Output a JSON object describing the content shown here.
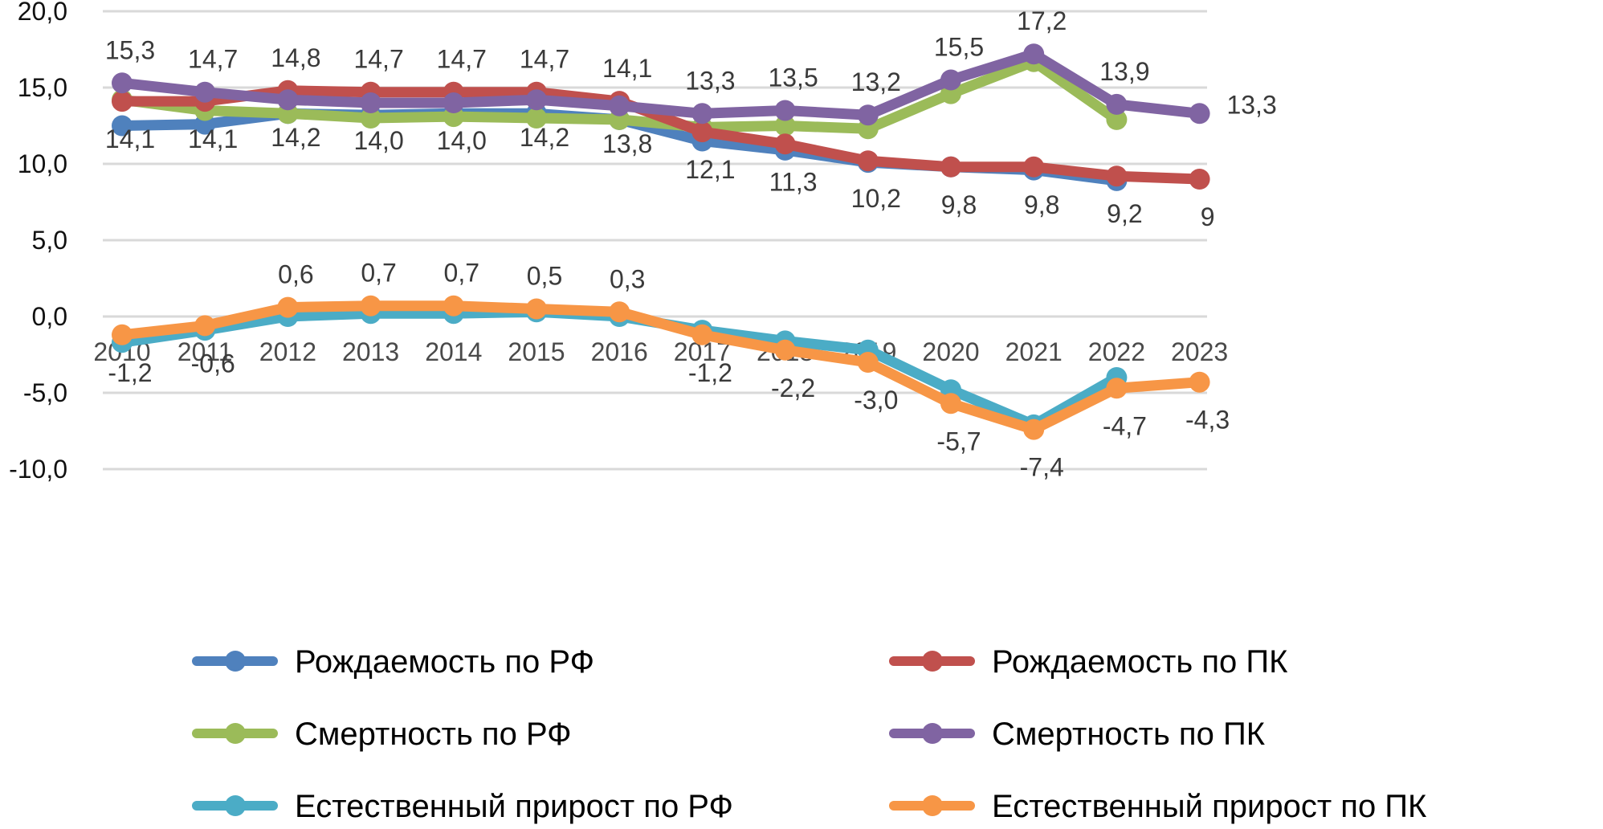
{
  "chart_data": {
    "type": "line",
    "title": "",
    "xlabel": "",
    "ylabel": "",
    "ylim": [
      -10,
      20
    ],
    "ytick_step": 5,
    "yticks": [
      "20,0",
      "15,0",
      "10,0",
      "5,0",
      "0,0",
      "-5,0",
      "-10,0"
    ],
    "grid": true,
    "legend_position": "bottom",
    "x": [
      "2010",
      "2011",
      "2012",
      "2013",
      "2014",
      "2015",
      "2016",
      "2017",
      "2018",
      "2019",
      "2020",
      "2021",
      "2022",
      "2023"
    ],
    "series": [
      {
        "name": "Рождаемость по РФ",
        "color": "#4F81BD",
        "values": [
          12.5,
          12.6,
          13.3,
          13.2,
          13.3,
          13.3,
          12.9,
          11.5,
          10.9,
          10.1,
          9.8,
          9.6,
          8.9,
          null
        ],
        "labels": null
      },
      {
        "name": "Рождаемость по ПК",
        "color": "#C0504D",
        "values": [
          14.1,
          14.1,
          14.8,
          14.7,
          14.7,
          14.7,
          14.1,
          12.1,
          11.3,
          10.2,
          9.8,
          9.8,
          9.2,
          9.0
        ],
        "labels": [
          "14,1",
          "14,1",
          "14,8",
          "14,7",
          "14,7",
          "14,7",
          "14,1",
          "12,1",
          "11,3",
          "10,2",
          "9,8",
          "9,8",
          "9,2",
          "9"
        ],
        "label_pos": [
          "below",
          "below",
          "above",
          "above",
          "above",
          "above",
          "above",
          "below",
          "below",
          "below",
          "below",
          "below",
          "below",
          "below"
        ]
      },
      {
        "name": "Смертность по РФ",
        "color": "#9BBB59",
        "values": [
          14.2,
          13.5,
          13.3,
          13.0,
          13.1,
          13.0,
          12.9,
          12.4,
          12.5,
          12.3,
          14.6,
          16.7,
          12.9,
          null
        ],
        "labels": null
      },
      {
        "name": "Смертность по ПК",
        "color": "#8064A2",
        "values": [
          15.3,
          14.7,
          14.2,
          14.0,
          14.0,
          14.2,
          13.8,
          13.3,
          13.5,
          13.2,
          15.5,
          17.2,
          13.9,
          13.3
        ],
        "labels": [
          "15,3",
          "14,7",
          "14,2",
          "14,0",
          "14,0",
          "14,2",
          "13,8",
          "13,3",
          "13,5",
          "13,2",
          "15,5",
          "17,2",
          "13,9",
          "13,3"
        ],
        "label_pos": [
          "above",
          "above",
          "below",
          "below",
          "below",
          "below",
          "below",
          "above",
          "above",
          "above",
          "above",
          "above",
          "above",
          "right"
        ]
      },
      {
        "name": "Естественный прирост по РФ",
        "color": "#4BACC6",
        "values": [
          -1.7,
          -0.9,
          0.0,
          0.2,
          0.2,
          0.3,
          0.0,
          -0.9,
          -1.6,
          -2.2,
          -4.8,
          -7.1,
          -4.0,
          null
        ],
        "labels": null
      },
      {
        "name": "Естественный прирост по ПК",
        "color": "#F79646",
        "values": [
          -1.2,
          -0.6,
          0.6,
          0.7,
          0.7,
          0.5,
          0.3,
          -1.2,
          -2.2,
          -3.0,
          -5.7,
          -7.4,
          -4.7,
          -4.3
        ],
        "labels": [
          "-1,2",
          "-0,6",
          "0,6",
          "0,7",
          "0,7",
          "0,5",
          "0,3",
          "-1,2",
          "-2,2",
          "-3,0",
          "-5,7",
          "-7,4",
          "-4,7",
          "-4,3"
        ],
        "label_pos": [
          "below",
          "below",
          "above",
          "above",
          "above",
          "above",
          "above",
          "below",
          "below",
          "below",
          "below",
          "below",
          "below",
          "below"
        ]
      }
    ]
  },
  "legend": [
    {
      "label": "Рождаемость по РФ",
      "color": "#4F81BD"
    },
    {
      "label": "Рождаемость по ПК",
      "color": "#C0504D"
    },
    {
      "label": "Смертность по РФ",
      "color": "#9BBB59"
    },
    {
      "label": "Смертность по ПК",
      "color": "#8064A2"
    },
    {
      "label": "Естественный прирост по РФ",
      "color": "#4BACC6"
    },
    {
      "label": "Естественный прирост по ПК",
      "color": "#F79646"
    }
  ]
}
